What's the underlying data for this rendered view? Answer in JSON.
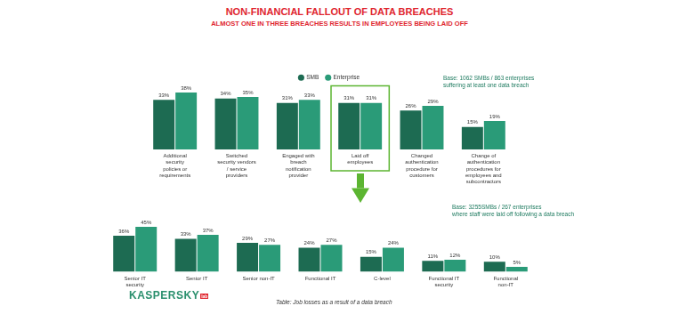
{
  "title": "NON-FINANCIAL FALLOUT OF DATA BREACHES",
  "subtitle": "ALMOST ONE IN THREE BREACHES RESULTS IN EMPLOYEES BEING LAID OFF",
  "chart_data": [
    {
      "type": "bar",
      "annotations": [
        "Base: 1062 SMBs / 863 enterprises",
        "suffering at least one data breach"
      ],
      "categories": [
        "Additional security policies or requirements",
        "Switched security vendors / service providers",
        "Engaged with breach notification provider",
        "Laid off employees",
        "Changed authentication procedure for customers",
        "Change of authentication procedures for employees and subcontractors"
      ],
      "series": [
        {
          "name": "SMB",
          "color": "#1d6b52",
          "values": [
            33,
            34,
            31,
            31,
            26,
            15
          ],
          "value_labels": [
            "33%",
            "34%",
            "31%",
            "31%",
            "26%",
            "15%"
          ]
        },
        {
          "name": "Enterprise",
          "color": "#2a9b78",
          "values": [
            38,
            35,
            33,
            31,
            29,
            19
          ],
          "value_labels": [
            "38%",
            "35%",
            "33%",
            "31%",
            "29%",
            "19%"
          ]
        }
      ],
      "legend": "top",
      "grid": false,
      "data_labels": true,
      "tick_labels": "x"
    },
    {
      "type": "bar",
      "annotations": [
        "Base: 3255SMBs / 267 enterprises",
        "where staff were laid off following a data breach"
      ],
      "categories": [
        "Senior IT security",
        "Senior IT",
        "Senior non-IT",
        "Functional IT",
        "C-level",
        "Functional IT security",
        "Functional non-IT"
      ],
      "series": [
        {
          "name": "SMB",
          "color": "#1d6b52",
          "values": [
            36,
            33,
            29,
            24,
            15,
            11,
            10
          ],
          "value_labels": [
            "36%",
            "33%",
            "29%",
            "24%",
            "15%",
            "11%",
            "10%"
          ]
        },
        {
          "name": "Enterprise",
          "color": "#2a9b78",
          "values": [
            45,
            37,
            27,
            27,
            24,
            12,
            5
          ],
          "value_labels": [
            "45%",
            "37%",
            "27%",
            "27%",
            "24%",
            "12%",
            "5%"
          ]
        }
      ],
      "grid": false,
      "data_labels": true,
      "tick_labels": "x"
    }
  ],
  "logo": [
    "KASPERSKY",
    "lab"
  ],
  "caption": "Table: Job losses as a result of a data breach"
}
